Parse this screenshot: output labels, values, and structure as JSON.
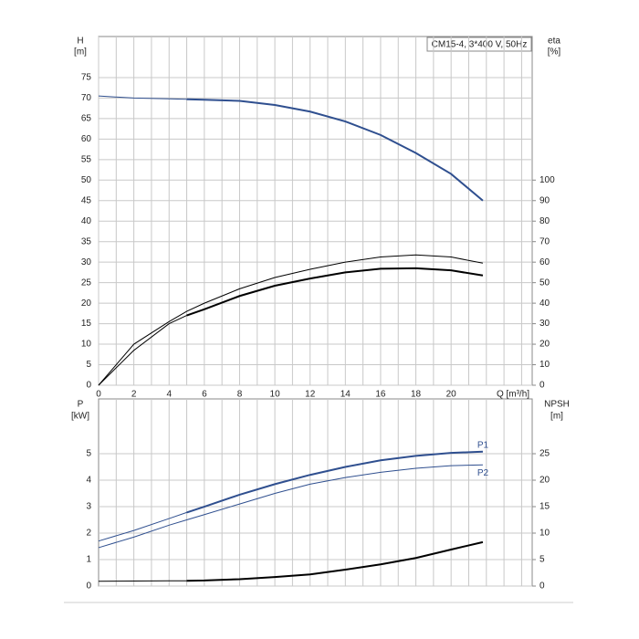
{
  "chart_data": [
    {
      "type": "line",
      "title": "CM15-4, 3*400 V, 50Hz",
      "ylabel": "H",
      "yunit": "[m]",
      "y2label": "eta",
      "y2unit": "[%]",
      "xlabel": "Q [m³/h]",
      "x": [
        0,
        2,
        4,
        5,
        6,
        8,
        10,
        12,
        14,
        16,
        18,
        20,
        21.8
      ],
      "xlim": [
        0,
        24.6
      ],
      "xticks": [
        0,
        2,
        4,
        6,
        8,
        10,
        12,
        14,
        16,
        18,
        20
      ],
      "xgrid": [
        1,
        3,
        5,
        7,
        9,
        11,
        13,
        15,
        17,
        19,
        21,
        22,
        23,
        24
      ],
      "ylim": [
        0,
        85
      ],
      "yticks": [
        0,
        5,
        10,
        15,
        20,
        25,
        30,
        35,
        40,
        45,
        50,
        55,
        60,
        65,
        70,
        75
      ],
      "y2lim": [
        0,
        170
      ],
      "y2ticks": [
        0,
        10,
        20,
        30,
        40,
        50,
        60,
        70,
        80,
        90,
        100
      ],
      "series": [
        {
          "color": "#2f4f8f",
          "width": 1,
          "values": [
            70.5,
            70,
            69.8,
            69.7,
            null,
            null,
            null,
            null,
            null,
            null,
            null,
            null,
            null
          ]
        },
        {
          "color": "#2f4f8f",
          "width": 2,
          "values": [
            null,
            null,
            null,
            69.7,
            69.6,
            69.3,
            68.3,
            66.7,
            64.3,
            61,
            56.6,
            51.5,
            45
          ]
        },
        {
          "color": "#000000",
          "width": 1,
          "axis": "y2",
          "values": [
            0,
            20,
            31,
            36,
            40,
            47,
            52.5,
            56.5,
            60,
            62.5,
            63.5,
            62.5,
            59.5
          ]
        },
        {
          "color": "#000000",
          "width": 1,
          "axis": "y2",
          "values": [
            0,
            17,
            30,
            34,
            null,
            null,
            null,
            null,
            null,
            null,
            null,
            null,
            null
          ]
        },
        {
          "color": "#000000",
          "width": 2,
          "axis": "y2",
          "values": [
            null,
            null,
            null,
            34,
            37,
            43.5,
            48.5,
            52,
            55,
            56.8,
            57,
            56,
            53.5
          ]
        }
      ]
    },
    {
      "type": "line",
      "ylabel": "P",
      "yunit": "[kW]",
      "y2label": "NPSH",
      "y2unit": "[m]",
      "x": [
        0,
        2,
        4,
        5,
        6,
        8,
        10,
        12,
        14,
        16,
        18,
        20,
        21.8
      ],
      "xlim": [
        0,
        24.6
      ],
      "xgrid": [
        1,
        2,
        3,
        4,
        5,
        6,
        7,
        8,
        9,
        10,
        11,
        12,
        13,
        14,
        15,
        16,
        17,
        18,
        19,
        20,
        21,
        22,
        23,
        24
      ],
      "ylim": [
        0,
        7.07
      ],
      "yticks": [
        0,
        1,
        2,
        3,
        4,
        5
      ],
      "y2lim": [
        0,
        35.35
      ],
      "y2ticks": [
        0,
        5,
        10,
        15,
        20,
        25
      ],
      "series": [
        {
          "color": "#2f4f8f",
          "width": 1,
          "values": [
            1.7,
            2.1,
            2.55,
            2.78,
            null,
            null,
            null,
            null,
            null,
            null,
            null,
            null,
            null
          ]
        },
        {
          "name": "P1",
          "color": "#2f4f8f",
          "width": 2,
          "values": [
            null,
            null,
            null,
            2.78,
            3.0,
            3.45,
            3.85,
            4.2,
            4.5,
            4.75,
            4.92,
            5.03,
            5.08
          ]
        },
        {
          "name": "P2",
          "color": "#2f4f8f",
          "width": 1,
          "values": [
            1.45,
            1.85,
            2.3,
            2.5,
            2.7,
            3.1,
            3.5,
            3.85,
            4.1,
            4.3,
            4.45,
            4.55,
            4.58
          ]
        },
        {
          "color": "#000000",
          "width": 1,
          "axis": "y2",
          "values": [
            0.9,
            0.95,
            1.0,
            1.0,
            null,
            null,
            null,
            null,
            null,
            null,
            null,
            null,
            null
          ]
        },
        {
          "color": "#000000",
          "width": 2,
          "axis": "y2",
          "values": [
            null,
            null,
            null,
            1.0,
            1.05,
            1.3,
            1.7,
            2.2,
            3.1,
            4.1,
            5.3,
            6.9,
            8.3
          ]
        }
      ]
    }
  ]
}
